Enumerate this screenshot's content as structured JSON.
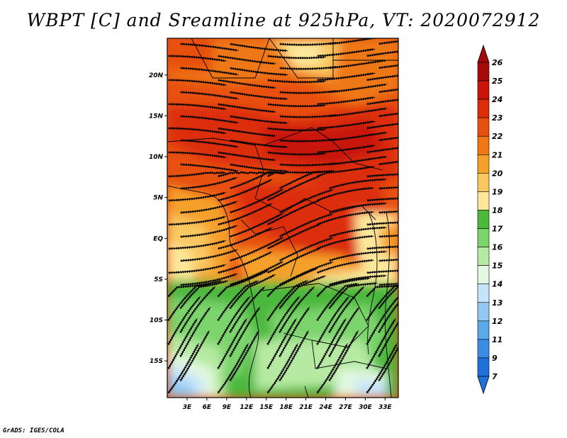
{
  "title": "WBPT [C] and Sreamline at 925hPa, VT: 2020072912",
  "credit": "GrADS: IGES/COLA",
  "map": {
    "lat_labels": [
      "20N",
      "15N",
      "10N",
      "5N",
      "EQ",
      "5S",
      "10S",
      "15S"
    ],
    "lat_values": [
      20,
      15,
      10,
      5,
      0,
      -5,
      -10,
      -15
    ],
    "lon_labels": [
      "3E",
      "6E",
      "9E",
      "12E",
      "15E",
      "18E",
      "21E",
      "24E",
      "27E",
      "30E",
      "33E"
    ],
    "lon_values": [
      3,
      6,
      9,
      12,
      15,
      18,
      21,
      24,
      27,
      30,
      33
    ],
    "lat_range": [
      -19.5,
      24.5
    ],
    "lon_range": [
      0,
      35
    ]
  },
  "colorbar": {
    "levels": [
      "26",
      "25",
      "24",
      "23",
      "22",
      "21",
      "20",
      "19",
      "18",
      "17",
      "16",
      "15",
      "14",
      "13",
      "12",
      "11",
      "9",
      "7"
    ],
    "colors": [
      "#a50a0a",
      "#c8140a",
      "#dc2d0a",
      "#e85010",
      "#ee7818",
      "#f5a02a",
      "#f9c860",
      "#fde79a",
      "#4cb83c",
      "#7cd46c",
      "#b6eaa2",
      "#e2f8e0",
      "#c4e4fa",
      "#92c8f2",
      "#5aaaea",
      "#3c8ce6",
      "#2070dc"
    ],
    "top_arrow": "#a50a0a",
    "bottom_arrow": "#2070dc"
  }
}
